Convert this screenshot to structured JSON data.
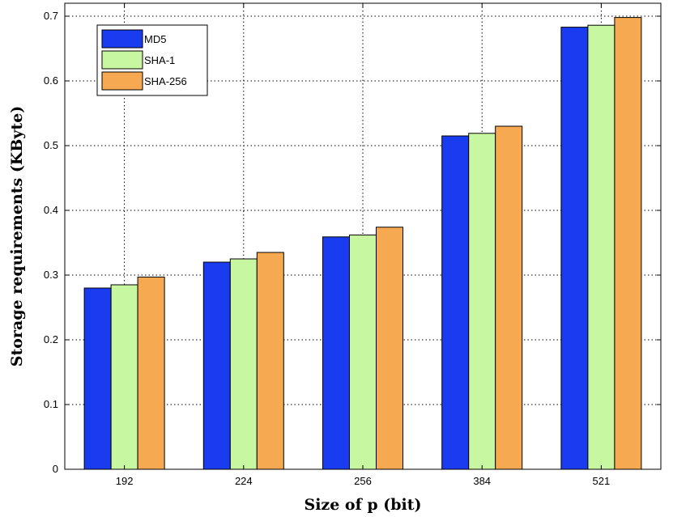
{
  "chart_data": {
    "type": "bar",
    "categories": [
      "192",
      "224",
      "256",
      "384",
      "521"
    ],
    "series": [
      {
        "name": "MD5",
        "color": "#1a3cf0",
        "values": [
          0.28,
          0.32,
          0.359,
          0.515,
          0.683
        ]
      },
      {
        "name": "SHA-1",
        "color": "#c7f7a0",
        "values": [
          0.285,
          0.325,
          0.362,
          0.519,
          0.686
        ]
      },
      {
        "name": "SHA-256",
        "color": "#f6a950",
        "values": [
          0.297,
          0.335,
          0.374,
          0.53,
          0.698
        ]
      }
    ],
    "xlabel": "Size of p (bit)",
    "ylabel": "Storage requirements (KByte)",
    "ylim": [
      0,
      0.72
    ],
    "yticks": [
      "0",
      "0.1",
      "0.2",
      "0.3",
      "0.4",
      "0.5",
      "0.6",
      "0.7"
    ],
    "grid": true,
    "legend_position": "top-left"
  }
}
